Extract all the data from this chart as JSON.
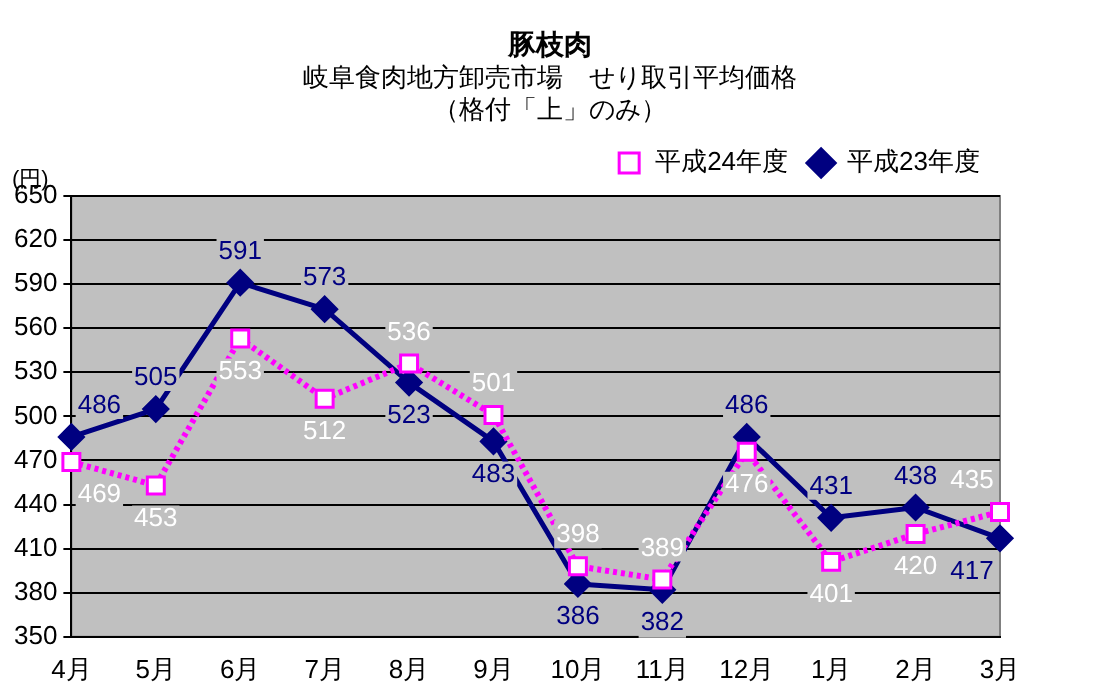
{
  "chart_data": {
    "type": "line",
    "title": "豚枝肉",
    "subtitle": "岐阜食肉地方卸売市場　せり取引平均価格（格付「上」のみ）",
    "ylabel": "(円)",
    "categories": [
      "4月",
      "5月",
      "6月",
      "7月",
      "8月",
      "9月",
      "10月",
      "11月",
      "12月",
      "1月",
      "2月",
      "3月"
    ],
    "series": [
      {
        "name": "平成24年度",
        "color": "#ff00ff",
        "marker": "square",
        "line_style": "dotted",
        "values": [
          469,
          453,
          553,
          512,
          536,
          501,
          398,
          389,
          476,
          401,
          420,
          435
        ]
      },
      {
        "name": "平成23年度",
        "color": "#000080",
        "marker": "diamond",
        "line_style": "solid",
        "values": [
          486,
          505,
          591,
          573,
          523,
          483,
          386,
          382,
          486,
          431,
          438,
          417
        ]
      }
    ],
    "ylim": [
      350,
      650
    ],
    "yticks": [
      350,
      380,
      410,
      440,
      470,
      500,
      530,
      560,
      590,
      620,
      650
    ],
    "grid": "y",
    "legend": "top right",
    "data_labels": true
  }
}
